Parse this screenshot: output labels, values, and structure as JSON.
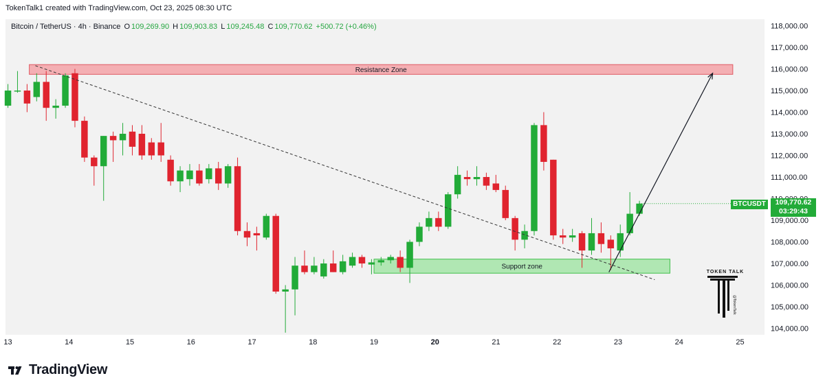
{
  "header": {
    "credit": "TokenTalk1 created with TradingView.com, Oct 23, 2025 08:30 UTC"
  },
  "legend": {
    "symbol": "Bitcoin / TetherUS · 4h · Binance",
    "o_label": "O",
    "o_value": "109,269.90",
    "h_label": "H",
    "h_value": "109,903.83",
    "l_label": "L",
    "l_value": "109,245.48",
    "c_label": "C",
    "c_value": "109,770.62",
    "change": "+500.72 (+0.46%)"
  },
  "price_badge": {
    "symbol": "BTCUSDT",
    "price": "109,770.62",
    "countdown": "03:29:43"
  },
  "watermark": {
    "text": "TOKEN TALK",
    "handle": "@TokenTalk"
  },
  "brand": {
    "name": "TradingView"
  },
  "colors": {
    "up": "#22ab38",
    "down": "#e0242f",
    "accent": "#22ab38",
    "resistance": "#f5a3a8",
    "support": "#9fe3a2"
  },
  "chart_data": {
    "type": "candlestick",
    "ylim": [
      103700,
      118300
    ],
    "xlim": [
      12.96,
      25.4
    ],
    "y_ticks": [
      "104,000.00",
      "105,000.00",
      "106,000.00",
      "107,000.00",
      "108,000.00",
      "109,000.00",
      "110,000.00",
      "111,000.00",
      "112,000.00",
      "113,000.00",
      "114,000.00",
      "115,000.00",
      "116,000.00",
      "117,000.00",
      "118,000.00"
    ],
    "y_tick_values": [
      104000,
      105000,
      106000,
      107000,
      108000,
      109000,
      110000,
      111000,
      112000,
      113000,
      114000,
      115000,
      116000,
      117000,
      118000
    ],
    "x_ticks": [
      {
        "label": "13",
        "value": 13,
        "bold": false
      },
      {
        "label": "14",
        "value": 14,
        "bold": false
      },
      {
        "label": "15",
        "value": 15,
        "bold": false
      },
      {
        "label": "16",
        "value": 16,
        "bold": false
      },
      {
        "label": "17",
        "value": 17,
        "bold": false
      },
      {
        "label": "18",
        "value": 18,
        "bold": false
      },
      {
        "label": "19",
        "value": 19,
        "bold": false
      },
      {
        "label": "20",
        "value": 20,
        "bold": true
      },
      {
        "label": "21",
        "value": 21,
        "bold": false
      },
      {
        "label": "22",
        "value": 22,
        "bold": false
      },
      {
        "label": "23",
        "value": 23,
        "bold": false
      },
      {
        "label": "24",
        "value": 24,
        "bold": false
      },
      {
        "label": "25",
        "value": 25,
        "bold": false
      }
    ],
    "candles": [
      {
        "o": 114300,
        "h": 115300,
        "l": 114200,
        "c": 115000
      },
      {
        "o": 115000,
        "h": 115900,
        "l": 114900,
        "c": 115000
      },
      {
        "o": 115000,
        "h": 115300,
        "l": 114000,
        "c": 114400
      },
      {
        "o": 114700,
        "h": 115800,
        "l": 114500,
        "c": 115400
      },
      {
        "o": 115400,
        "h": 115900,
        "l": 113600,
        "c": 114200
      },
      {
        "o": 114200,
        "h": 114600,
        "l": 113700,
        "c": 114300
      },
      {
        "o": 114300,
        "h": 115800,
        "l": 114200,
        "c": 115700
      },
      {
        "o": 115800,
        "h": 116000,
        "l": 113300,
        "c": 113600
      },
      {
        "o": 113600,
        "h": 113800,
        "l": 111700,
        "c": 111900
      },
      {
        "o": 111900,
        "h": 112000,
        "l": 110600,
        "c": 111500
      },
      {
        "o": 111500,
        "h": 112900,
        "l": 109900,
        "c": 112900
      },
      {
        "o": 112900,
        "h": 113100,
        "l": 111700,
        "c": 112700
      },
      {
        "o": 112700,
        "h": 113500,
        "l": 112000,
        "c": 113000
      },
      {
        "o": 113100,
        "h": 113400,
        "l": 112000,
        "c": 112400
      },
      {
        "o": 113000,
        "h": 113400,
        "l": 111800,
        "c": 112000
      },
      {
        "o": 112600,
        "h": 112800,
        "l": 111800,
        "c": 112000
      },
      {
        "o": 112600,
        "h": 113500,
        "l": 111700,
        "c": 112000
      },
      {
        "o": 111800,
        "h": 112000,
        "l": 110600,
        "c": 110800
      },
      {
        "o": 110800,
        "h": 111500,
        "l": 110300,
        "c": 111300
      },
      {
        "o": 110900,
        "h": 111600,
        "l": 110600,
        "c": 111300
      },
      {
        "o": 111300,
        "h": 111600,
        "l": 110600,
        "c": 110700
      },
      {
        "o": 110900,
        "h": 111600,
        "l": 110700,
        "c": 111400
      },
      {
        "o": 111400,
        "h": 111700,
        "l": 110400,
        "c": 110700
      },
      {
        "o": 110700,
        "h": 111600,
        "l": 110500,
        "c": 111500
      },
      {
        "o": 111500,
        "h": 111900,
        "l": 108300,
        "c": 108500
      },
      {
        "o": 108500,
        "h": 108900,
        "l": 107800,
        "c": 108200
      },
      {
        "o": 108400,
        "h": 108700,
        "l": 107600,
        "c": 108300
      },
      {
        "o": 108200,
        "h": 109300,
        "l": 108100,
        "c": 109200
      },
      {
        "o": 109200,
        "h": 109300,
        "l": 105600,
        "c": 105700
      },
      {
        "o": 105700,
        "h": 106000,
        "l": 103800,
        "c": 105800
      },
      {
        "o": 105800,
        "h": 107300,
        "l": 104600,
        "c": 106900
      },
      {
        "o": 106900,
        "h": 107600,
        "l": 106500,
        "c": 106600
      },
      {
        "o": 106600,
        "h": 107300,
        "l": 106500,
        "c": 106900
      },
      {
        "o": 106400,
        "h": 107200,
        "l": 106300,
        "c": 107000
      },
      {
        "o": 107000,
        "h": 107600,
        "l": 106600,
        "c": 106600
      },
      {
        "o": 106600,
        "h": 107400,
        "l": 106500,
        "c": 107100
      },
      {
        "o": 106900,
        "h": 107500,
        "l": 106800,
        "c": 107300
      },
      {
        "o": 107300,
        "h": 107400,
        "l": 106800,
        "c": 107000
      },
      {
        "o": 106950,
        "h": 107200,
        "l": 106500,
        "c": 107050
      },
      {
        "o": 107050,
        "h": 107300,
        "l": 106900,
        "c": 107150
      },
      {
        "o": 107150,
        "h": 107400,
        "l": 107000,
        "c": 107300
      },
      {
        "o": 107300,
        "h": 107600,
        "l": 106600,
        "c": 106800
      },
      {
        "o": 106800,
        "h": 108100,
        "l": 106100,
        "c": 108000
      },
      {
        "o": 108000,
        "h": 108900,
        "l": 107800,
        "c": 108700
      },
      {
        "o": 108700,
        "h": 109400,
        "l": 108500,
        "c": 109100
      },
      {
        "o": 109100,
        "h": 109400,
        "l": 108500,
        "c": 108700
      },
      {
        "o": 108700,
        "h": 110300,
        "l": 108600,
        "c": 110200
      },
      {
        "o": 110200,
        "h": 111500,
        "l": 110000,
        "c": 111100
      },
      {
        "o": 111000,
        "h": 111300,
        "l": 110600,
        "c": 110900
      },
      {
        "o": 110900,
        "h": 111500,
        "l": 110600,
        "c": 111000
      },
      {
        "o": 111000,
        "h": 111200,
        "l": 110400,
        "c": 110600
      },
      {
        "o": 110700,
        "h": 111100,
        "l": 110300,
        "c": 110400
      },
      {
        "o": 110400,
        "h": 110600,
        "l": 109000,
        "c": 109100
      },
      {
        "o": 109100,
        "h": 109200,
        "l": 107600,
        "c": 108100
      },
      {
        "o": 108100,
        "h": 108800,
        "l": 107700,
        "c": 108500
      },
      {
        "o": 108500,
        "h": 113500,
        "l": 108300,
        "c": 113400
      },
      {
        "o": 113400,
        "h": 114000,
        "l": 111300,
        "c": 111700
      },
      {
        "o": 111800,
        "h": 111800,
        "l": 108100,
        "c": 108300
      },
      {
        "o": 108300,
        "h": 108600,
        "l": 107900,
        "c": 108200
      },
      {
        "o": 108200,
        "h": 108600,
        "l": 108000,
        "c": 108300
      },
      {
        "o": 108400,
        "h": 108500,
        "l": 106800,
        "c": 107600
      },
      {
        "o": 107600,
        "h": 109100,
        "l": 107400,
        "c": 108400
      },
      {
        "o": 108400,
        "h": 108900,
        "l": 107500,
        "c": 107900
      },
      {
        "o": 108100,
        "h": 108300,
        "l": 106700,
        "c": 107700
      },
      {
        "o": 107600,
        "h": 108800,
        "l": 107300,
        "c": 108400
      },
      {
        "o": 108400,
        "h": 110300,
        "l": 108300,
        "c": 109300
      },
      {
        "o": 109300,
        "h": 109900,
        "l": 109200,
        "c": 109770
      }
    ],
    "annotations": {
      "resistance_zone": {
        "label": "Resistance Zone",
        "x0": 13.35,
        "x1": 24.88,
        "y0": 115750,
        "y1": 116200
      },
      "support_zone": {
        "label": "Support zone",
        "x0": 19.0,
        "x1": 23.85,
        "y0": 106550,
        "y1": 107200
      },
      "trendline": {
        "x0": 13.45,
        "y0": 116150,
        "x1": 23.6,
        "y1": 106250
      },
      "projection": {
        "x0": 22.85,
        "y0": 106600,
        "x1": 24.55,
        "y1": 115800
      }
    },
    "last_price": 109770
  }
}
